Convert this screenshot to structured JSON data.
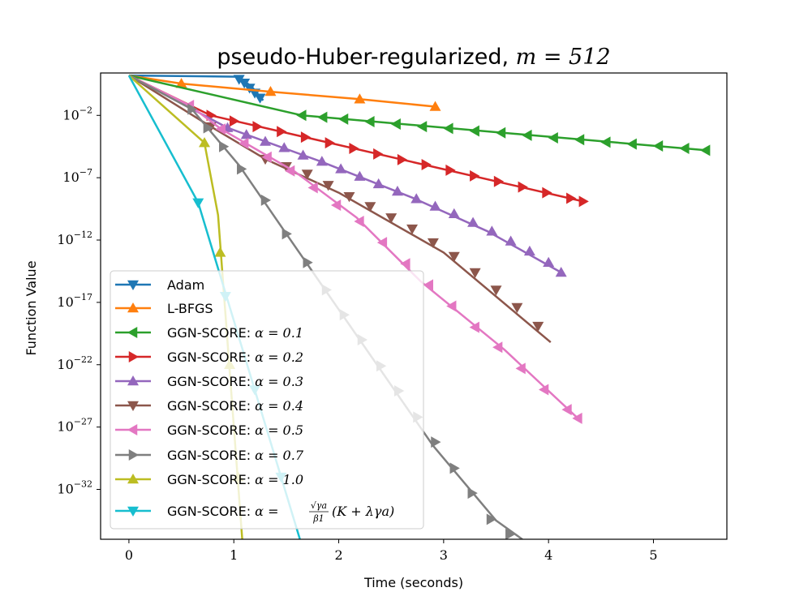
{
  "chart_data": {
    "type": "line",
    "title_main": "pseudo-Huber-regularized, ",
    "title_math": "m = 512",
    "xlabel": "Time (seconds)",
    "ylabel": "Function Value",
    "xlim": [
      -0.27,
      5.7
    ],
    "ylim_log10": [
      -36.0,
      1.4
    ],
    "yscale": "log",
    "x_ticks": [
      0,
      1,
      2,
      3,
      4,
      5
    ],
    "x_tick_labels": [
      "0",
      "1",
      "2",
      "3",
      "4",
      "5"
    ],
    "y_ticks_log10": [
      -2,
      -7,
      -12,
      -17,
      -22,
      -27,
      -32
    ],
    "y_tick_labels": [
      "10",
      "10",
      "10",
      "10",
      "10",
      "10",
      "10"
    ],
    "y_tick_exponents": [
      "−2",
      "−7",
      "−12",
      "−17",
      "−22",
      "−27",
      "−32"
    ],
    "legend_position": "lower-left",
    "series": [
      {
        "name": "Adam",
        "color": "#1f77b4",
        "marker": "triangle-down",
        "x": [
          0.0,
          1.05,
          1.08,
          1.1,
          1.12,
          1.14,
          1.16,
          1.18,
          1.2,
          1.22,
          1.24,
          1.26,
          1.28
        ],
        "log10_y": [
          1.2,
          1.1,
          0.9,
          0.7,
          0.6,
          0.5,
          0.3,
          0.2,
          0.0,
          -0.2,
          -0.4,
          -0.6,
          -0.8
        ],
        "marker_x": [
          1.05,
          1.1,
          1.15,
          1.2,
          1.25
        ],
        "marker_log10_y": [
          0.9,
          0.6,
          0.2,
          -0.2,
          -0.6
        ]
      },
      {
        "name": "L-BFGS",
        "color": "#ff7f0e",
        "marker": "triangle-up",
        "x": [
          0.0,
          0.5,
          1.35,
          2.2,
          2.92
        ],
        "log10_y": [
          1.2,
          0.55,
          -0.1,
          -0.7,
          -1.3
        ],
        "marker_x": [
          0.5,
          1.35,
          2.2,
          2.92
        ],
        "marker_log10_y": [
          0.55,
          -0.1,
          -0.7,
          -1.3
        ]
      },
      {
        "name": "GGN-SCORE: α = 0.1",
        "color": "#2ca02c",
        "marker": "triangle-left",
        "x": [
          0.0,
          1.65,
          5.5
        ],
        "log10_y": [
          1.2,
          -2.0,
          -4.8
        ],
        "marker_x": [
          1.65,
          1.85,
          2.05,
          2.3,
          2.55,
          2.8,
          3.05,
          3.3,
          3.55,
          3.8,
          4.05,
          4.3,
          4.55,
          4.8,
          5.05,
          5.3,
          5.5
        ],
        "marker_log10_y": [
          -2.0,
          -2.15,
          -2.3,
          -2.5,
          -2.7,
          -2.9,
          -3.05,
          -3.25,
          -3.4,
          -3.6,
          -3.8,
          -3.95,
          -4.15,
          -4.3,
          -4.45,
          -4.65,
          -4.8
        ]
      },
      {
        "name": "GGN-SCORE: α = 0.2",
        "color": "#d62728",
        "marker": "triangle-right",
        "x": [
          0.0,
          0.78,
          4.33
        ],
        "log10_y": [
          1.2,
          -2.0,
          -8.9
        ],
        "marker_x": [
          0.78,
          1.0,
          1.22,
          1.45,
          1.68,
          1.91,
          2.14,
          2.37,
          2.6,
          2.83,
          3.06,
          3.29,
          3.52,
          3.75,
          3.98,
          4.21,
          4.33
        ],
        "marker_log10_y": [
          -2.0,
          -2.45,
          -2.9,
          -3.3,
          -3.75,
          -4.2,
          -4.65,
          -5.1,
          -5.55,
          -5.95,
          -6.4,
          -6.85,
          -7.3,
          -7.75,
          -8.2,
          -8.65,
          -8.9
        ]
      },
      {
        "name": "GGN-SCORE: α = 0.3",
        "color": "#9467bd",
        "marker": "triangle-up",
        "x": [
          0.0,
          0.94,
          1.83,
          2.7,
          3.42,
          4.12
        ],
        "log10_y": [
          1.2,
          -3.0,
          -5.7,
          -8.6,
          -11.3,
          -14.6
        ],
        "marker_x": [
          0.94,
          1.12,
          1.3,
          1.48,
          1.66,
          1.84,
          2.02,
          2.2,
          2.38,
          2.56,
          2.74,
          2.92,
          3.1,
          3.28,
          3.46,
          3.64,
          3.82,
          4.0,
          4.12
        ],
        "marker_log10_y": [
          -3.0,
          -3.55,
          -4.1,
          -4.6,
          -5.2,
          -5.7,
          -6.3,
          -6.9,
          -7.5,
          -8.1,
          -8.7,
          -9.3,
          -9.9,
          -10.6,
          -11.3,
          -12.1,
          -12.9,
          -13.8,
          -14.6
        ]
      },
      {
        "name": "GGN-SCORE: α = 0.4",
        "color": "#8c564b",
        "marker": "triangle-down",
        "x": [
          0.0,
          0.78,
          1.3,
          2.0,
          3.0,
          4.02
        ],
        "log10_y": [
          1.2,
          -2.9,
          -5.5,
          -8.2,
          -13.0,
          -20.2
        ],
        "marker_x": [
          0.78,
          1.3,
          1.5,
          1.7,
          1.9,
          2.1,
          2.3,
          2.5,
          2.7,
          2.9,
          3.1,
          3.3,
          3.5,
          3.7,
          3.9
        ],
        "marker_log10_y": [
          -2.9,
          -5.5,
          -6.1,
          -6.7,
          -7.6,
          -8.5,
          -9.3,
          -10.2,
          -11.1,
          -12.2,
          -13.3,
          -14.6,
          -16.0,
          -17.4,
          -18.9
        ]
      },
      {
        "name": "GGN-SCORE: α = 0.5",
        "color": "#e377c2",
        "marker": "triangle-left",
        "x": [
          0.0,
          0.58,
          0.88,
          1.58,
          2.17,
          2.78,
          3.58,
          4.28
        ],
        "log10_y": [
          1.2,
          -1.2,
          -3.1,
          -6.5,
          -10.2,
          -15.3,
          -20.8,
          -26.3
        ],
        "marker_x": [
          0.58,
          0.88,
          1.1,
          1.32,
          1.54,
          1.76,
          1.98,
          2.2,
          2.42,
          2.64,
          2.86,
          3.08,
          3.3,
          3.52,
          3.74,
          3.96,
          4.18,
          4.28
        ],
        "marker_log10_y": [
          -1.2,
          -3.1,
          -4.25,
          -5.35,
          -6.45,
          -7.8,
          -9.2,
          -10.5,
          -12.2,
          -13.9,
          -15.6,
          -17.3,
          -19.0,
          -20.6,
          -22.3,
          -24.0,
          -25.6,
          -26.3
        ]
      },
      {
        "name": "GGN-SCORE: α = 0.7",
        "color": "#7f7f7f",
        "marker": "triangle-right",
        "x": [
          0.0,
          0.6,
          1.05,
          1.5,
          2.2,
          2.9,
          3.5,
          3.75
        ],
        "log10_y": [
          1.2,
          -1.5,
          -6.0,
          -11.5,
          -20.0,
          -28.5,
          -34.5,
          -36.0
        ],
        "marker_x": [
          0.6,
          0.75,
          0.9,
          1.07,
          1.3,
          1.5,
          1.7,
          1.88,
          2.05,
          2.22,
          2.4,
          2.57,
          2.75,
          2.92,
          3.1,
          3.27,
          3.45,
          3.63
        ],
        "marker_log10_y": [
          -1.5,
          -3.0,
          -4.5,
          -6.3,
          -8.8,
          -11.5,
          -13.8,
          -16.0,
          -18.0,
          -20.0,
          -22.1,
          -24.1,
          -26.2,
          -28.2,
          -30.3,
          -32.3,
          -34.4,
          -35.6
        ]
      },
      {
        "name": "GGN-SCORE: α = 1.0",
        "color": "#bcbd22",
        "marker": "triangle-up",
        "x": [
          0.0,
          0.72,
          0.85,
          1.08
        ],
        "log10_y": [
          1.2,
          -4.2,
          -10.0,
          -36.0
        ],
        "marker_x": [
          0.72,
          0.87,
          0.96,
          1.04
        ],
        "marker_log10_y": [
          -4.2,
          -13.0,
          -22.0,
          -31.0
        ]
      },
      {
        "name": "GGN-SCORE: α = √γa/β1 (K + λγa)",
        "color": "#17becf",
        "marker": "triangle-down",
        "x": [
          0.0,
          0.66,
          1.63
        ],
        "log10_y": [
          1.2,
          -9.0,
          -36.0
        ],
        "marker_x": [
          0.66,
          0.92,
          1.2,
          1.45
        ],
        "marker_log10_y": [
          -9.0,
          -16.5,
          -24.0,
          -31.0
        ]
      }
    ],
    "legend": [
      {
        "prefix": "Adam",
        "alpha": ""
      },
      {
        "prefix": "L-BFGS",
        "alpha": ""
      },
      {
        "prefix": "GGN-SCORE: ",
        "alpha": "α = 0.1"
      },
      {
        "prefix": "GGN-SCORE: ",
        "alpha": "α = 0.2"
      },
      {
        "prefix": "GGN-SCORE: ",
        "alpha": "α = 0.3"
      },
      {
        "prefix": "GGN-SCORE: ",
        "alpha": "α = 0.4"
      },
      {
        "prefix": "GGN-SCORE: ",
        "alpha": "α = 0.5"
      },
      {
        "prefix": "GGN-SCORE: ",
        "alpha": "α = 0.7"
      },
      {
        "prefix": "GGN-SCORE: ",
        "alpha": "α = 1.0"
      },
      {
        "prefix": "GGN-SCORE: ",
        "alpha": "α = ",
        "frac_num": "√γa",
        "frac_den": "β1",
        "tail": "(K + λγa)"
      }
    ]
  }
}
